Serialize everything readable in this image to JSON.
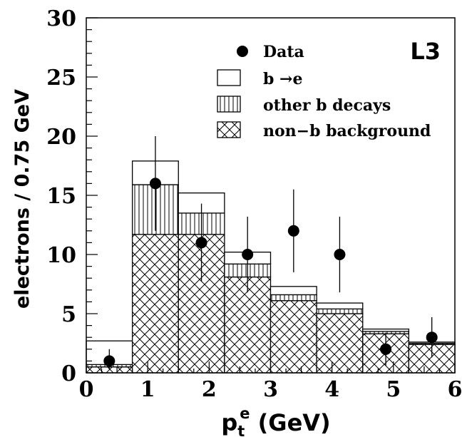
{
  "chart_data": {
    "type": "bar",
    "corner_label": "L3",
    "xlabel": {
      "base": "p",
      "sub": "t",
      "sup": "e",
      "unit": "(GeV)"
    },
    "ylabel": "electrons / 0.75 GeV",
    "xlim": [
      0,
      6
    ],
    "ylim": [
      0,
      30
    ],
    "bin_width": 0.75,
    "bin_edges": [
      0,
      0.75,
      1.5,
      2.25,
      3.0,
      3.75,
      4.5,
      5.25,
      6.0
    ],
    "x_ticks": [
      "0",
      "1",
      "2",
      "3",
      "4",
      "5",
      "6"
    ],
    "y_ticks": [
      "0",
      "5",
      "10",
      "15",
      "20",
      "25",
      "30"
    ],
    "legend_position": "top-right",
    "series": [
      {
        "name": "non−b background",
        "kind": "stack",
        "values": [
          0.5,
          11.7,
          11.7,
          8.1,
          6.1,
          5.0,
          3.3,
          2.4
        ]
      },
      {
        "name": "other b decays",
        "kind": "stack",
        "values": [
          0.2,
          4.2,
          1.8,
          1.1,
          0.5,
          0.4,
          0.2,
          0.1
        ]
      },
      {
        "name": "b →e",
        "kind": "stack",
        "values": [
          2.0,
          2.0,
          1.7,
          1.0,
          0.7,
          0.5,
          0.2,
          0.1
        ]
      },
      {
        "name": "Data",
        "kind": "points",
        "x": [
          0.375,
          1.125,
          1.875,
          2.625,
          3.375,
          4.125,
          4.875,
          5.625
        ],
        "values": [
          1,
          16,
          11,
          10,
          12,
          10,
          2,
          3
        ],
        "err_low": [
          0.7,
          4.0,
          3.3,
          3.2,
          3.5,
          3.2,
          1.4,
          1.7
        ],
        "err_high": [
          1.0,
          4.0,
          3.3,
          3.2,
          3.5,
          3.2,
          1.4,
          1.7
        ]
      }
    ]
  }
}
